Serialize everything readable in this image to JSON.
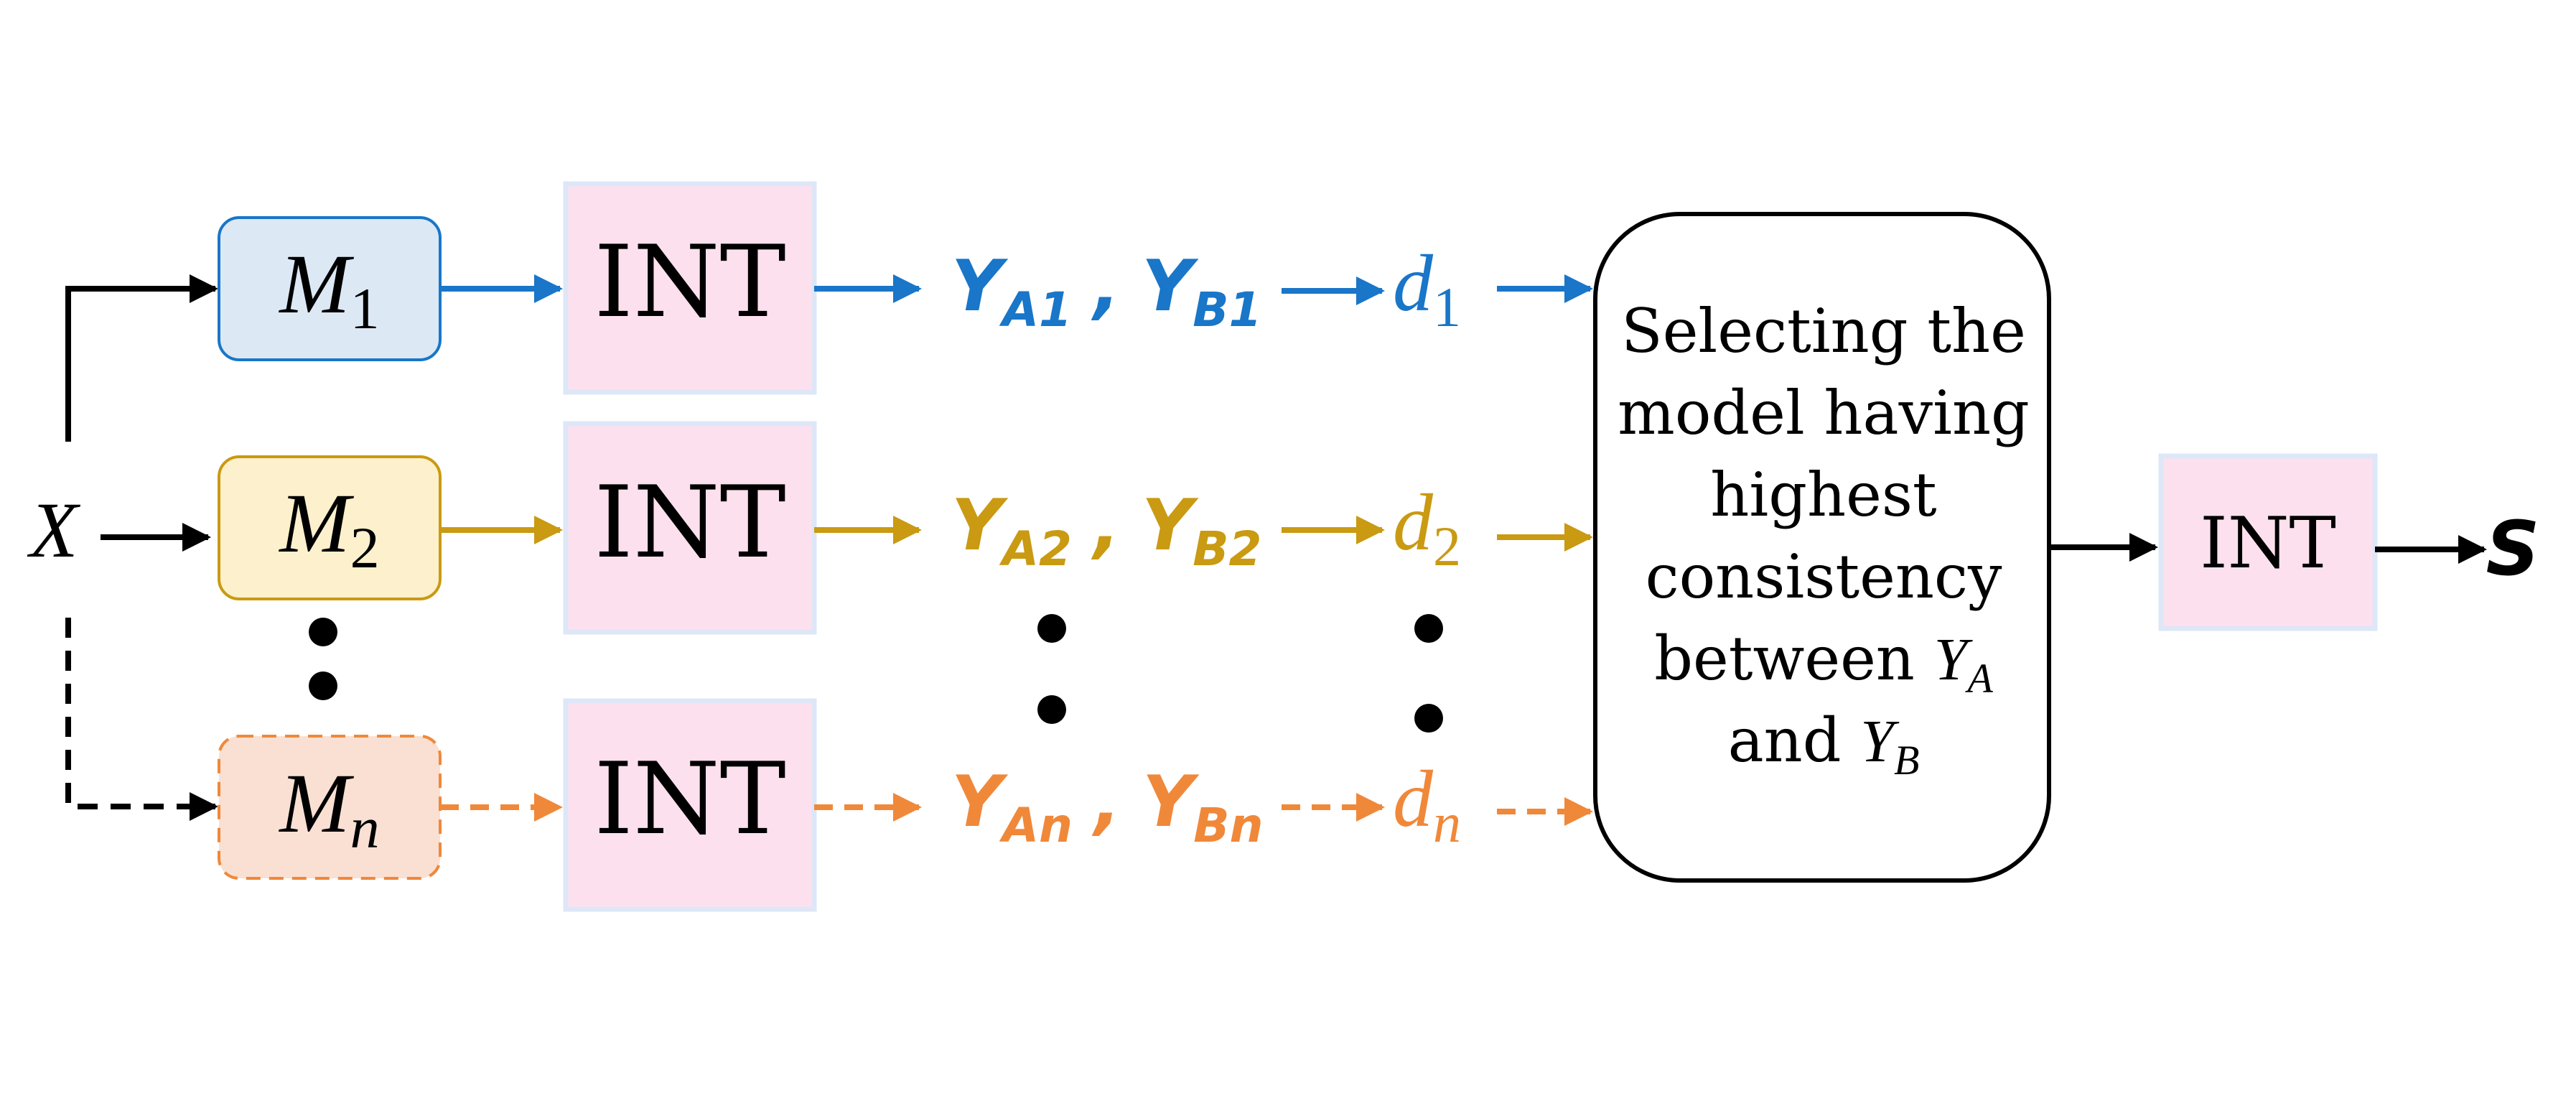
{
  "input": {
    "label": "X"
  },
  "models": [
    {
      "base": "M",
      "sub": "1",
      "color": "#1976c8",
      "fill": "#dde8f5",
      "border": "#1976c8",
      "dashed": false
    },
    {
      "base": "M",
      "sub": "2",
      "color": "#c99a12",
      "fill": "#fdf0cc",
      "border": "#c99a12",
      "dashed": false
    },
    {
      "base": "M",
      "sub": "n",
      "color": "#f0883a",
      "fill": "#f9e0d2",
      "border": "#f0883a",
      "dashed": true
    }
  ],
  "int_label": "INT",
  "outputs": [
    {
      "ya": "Y",
      "ya_sub": "A1",
      "yb": "Y",
      "yb_sub": "B1",
      "sep": ",",
      "d": "d",
      "d_sub": "1"
    },
    {
      "ya": "Y",
      "ya_sub": "A2",
      "yb": "Y",
      "yb_sub": "B2",
      "sep": ",",
      "d": "d",
      "d_sub": "2"
    },
    {
      "ya": "Y",
      "ya_sub": "An",
      "yb": "Y",
      "yb_sub": "Bn",
      "sep": ",",
      "d": "d",
      "d_sub": "n"
    }
  ],
  "selector": {
    "line1": "Selecting the",
    "line2": "model having",
    "line3": "highest",
    "line4": "consistency",
    "line5_prefix": "between ",
    "line5_var": "Y",
    "line5_sub": "A",
    "line6_prefix": "and ",
    "line6_var": "Y",
    "line6_sub": "B"
  },
  "final_int_label": "INT",
  "output": {
    "label": "S"
  },
  "colors": {
    "int_fill": "#fde0ee",
    "int_border": "#dde7f7",
    "black": "#000000"
  }
}
